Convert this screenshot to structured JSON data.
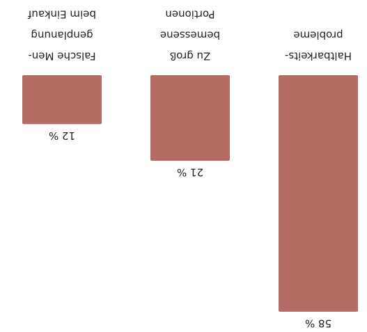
{
  "chart_data": {
    "type": "bar",
    "categories": [
      [
        "Haltbarkeits-",
        "probleme"
      ],
      [
        "Zu groß",
        "bemessene",
        "Portionen"
      ],
      [
        "Falsche Men-",
        "genplanung",
        "beim Einkauf"
      ]
    ],
    "values": [
      58,
      21,
      12
    ],
    "value_labels": [
      "58 %",
      "21 %",
      "12 %"
    ],
    "color": "#b46b63"
  }
}
